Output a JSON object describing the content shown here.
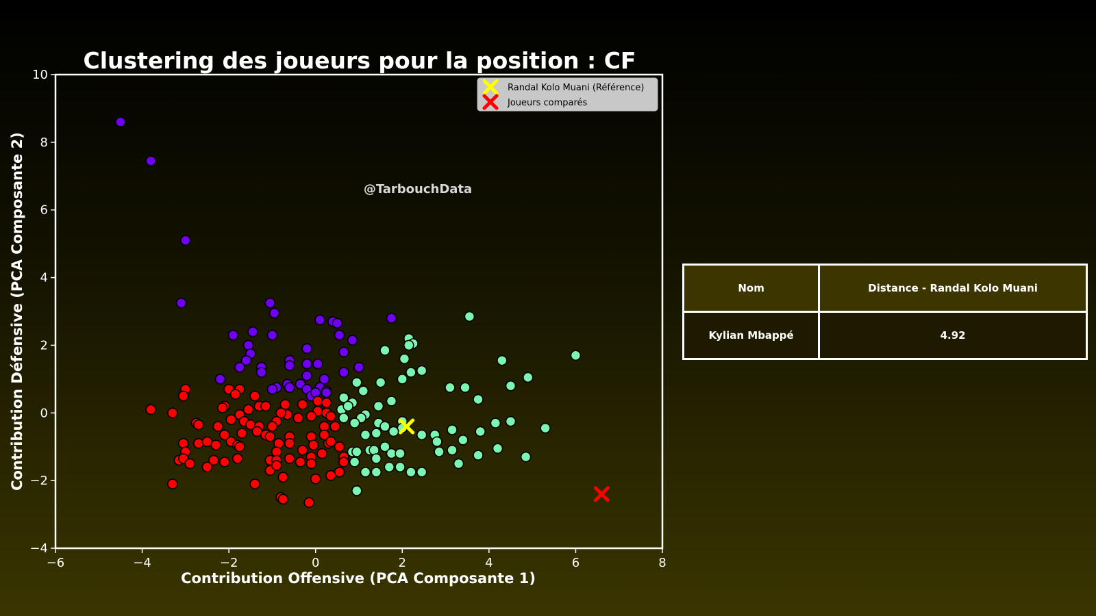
{
  "chart_data": {
    "type": "scatter",
    "title": "Clustering des joueurs pour la position : CF",
    "xlabel": "Contribution Offensive (PCA Composante 1)",
    "ylabel": "Contribution Défensive (PCA Composante 2)",
    "xlim": [
      -6,
      8
    ],
    "ylim": [
      -4,
      10
    ],
    "xticks": [
      "−6",
      "−4",
      "−2",
      "0",
      "2",
      "4",
      "6",
      "8"
    ],
    "yticks": [
      "−4",
      "−2",
      "0",
      "2",
      "4",
      "6",
      "8",
      "10"
    ],
    "watermark": "@TarbouchData",
    "legend_position": "top-right",
    "legend": [
      {
        "label": "Randal Kolo Muani (Référence)",
        "color": "#ffff00",
        "marker": "x"
      },
      {
        "label": "Joueurs comparés",
        "color": "#ff0000",
        "marker": "x"
      }
    ],
    "series": [
      {
        "color": "#7000f0",
        "points": [
          [
            -4.5,
            8.6
          ],
          [
            -3.8,
            7.45
          ],
          [
            -3.0,
            5.1
          ],
          [
            -3.1,
            3.25
          ],
          [
            -1.05,
            3.25
          ],
          [
            -0.95,
            2.95
          ],
          [
            -1.9,
            2.3
          ],
          [
            -1.45,
            2.4
          ],
          [
            -1.0,
            2.3
          ],
          [
            -1.55,
            2.0
          ],
          [
            -1.5,
            1.75
          ],
          [
            -1.6,
            1.55
          ],
          [
            -1.75,
            1.35
          ],
          [
            -1.25,
            1.35
          ],
          [
            -1.25,
            1.2
          ],
          [
            -2.2,
            1.0
          ],
          [
            -0.6,
            1.55
          ],
          [
            -0.6,
            1.4
          ],
          [
            -0.2,
            1.9
          ],
          [
            -0.2,
            1.45
          ],
          [
            0.05,
            1.45
          ],
          [
            -0.2,
            1.1
          ],
          [
            0.2,
            1.0
          ],
          [
            -0.35,
            0.85
          ],
          [
            -0.65,
            0.85
          ],
          [
            -0.6,
            0.75
          ],
          [
            -0.9,
            0.75
          ],
          [
            -1.0,
            0.7
          ],
          [
            -0.2,
            0.7
          ],
          [
            0.1,
            0.75
          ],
          [
            0.25,
            0.65
          ],
          [
            0.25,
            0.6
          ],
          [
            -0.1,
            0.5
          ],
          [
            0.1,
            2.75
          ],
          [
            0.4,
            2.7
          ],
          [
            0.5,
            2.65
          ],
          [
            0.55,
            2.3
          ],
          [
            0.85,
            2.15
          ],
          [
            0.65,
            1.8
          ],
          [
            1.0,
            1.35
          ],
          [
            0.65,
            1.2
          ],
          [
            1.75,
            2.8
          ],
          [
            0.0,
            0.6
          ],
          [
            -0.75,
            0.05
          ]
        ]
      },
      {
        "color": "#ff0000",
        "points": [
          [
            -3.8,
            0.1
          ],
          [
            -3.3,
            0.0
          ],
          [
            -3.0,
            0.7
          ],
          [
            -3.05,
            0.5
          ],
          [
            -2.0,
            0.7
          ],
          [
            -1.75,
            0.7
          ],
          [
            -1.85,
            0.55
          ],
          [
            -1.4,
            0.5
          ],
          [
            -2.1,
            0.2
          ],
          [
            -2.15,
            0.15
          ],
          [
            -1.55,
            0.1
          ],
          [
            -1.3,
            0.2
          ],
          [
            -1.15,
            0.2
          ],
          [
            -0.7,
            0.25
          ],
          [
            -0.3,
            0.25
          ],
          [
            0.05,
            0.35
          ],
          [
            0.25,
            0.3
          ],
          [
            0.05,
            0.05
          ],
          [
            0.25,
            0.0
          ],
          [
            0.35,
            -0.1
          ],
          [
            -0.65,
            -0.05
          ],
          [
            -0.8,
            0.0
          ],
          [
            -1.75,
            -0.05
          ],
          [
            -1.95,
            -0.2
          ],
          [
            -1.65,
            -0.25
          ],
          [
            -0.9,
            -0.25
          ],
          [
            -0.4,
            -0.15
          ],
          [
            -0.1,
            -0.1
          ],
          [
            0.2,
            -0.4
          ],
          [
            0.45,
            -0.4
          ],
          [
            -2.75,
            -0.3
          ],
          [
            -2.7,
            -0.35
          ],
          [
            -2.25,
            -0.4
          ],
          [
            -1.5,
            -0.35
          ],
          [
            -1.3,
            -0.4
          ],
          [
            -1.35,
            -0.55
          ],
          [
            -1.0,
            -0.4
          ],
          [
            -2.1,
            -0.65
          ],
          [
            -1.7,
            -0.6
          ],
          [
            -1.15,
            -0.65
          ],
          [
            -1.05,
            -0.7
          ],
          [
            -0.6,
            -0.7
          ],
          [
            -0.1,
            -0.7
          ],
          [
            0.2,
            -0.65
          ],
          [
            -3.05,
            -0.9
          ],
          [
            -2.7,
            -0.9
          ],
          [
            -2.5,
            -0.85
          ],
          [
            -2.3,
            -0.95
          ],
          [
            -1.95,
            -0.85
          ],
          [
            -1.8,
            -0.95
          ],
          [
            -1.75,
            -1.0
          ],
          [
            -0.85,
            -0.9
          ],
          [
            -0.6,
            -0.9
          ],
          [
            -0.05,
            -0.95
          ],
          [
            0.3,
            -0.9
          ],
          [
            0.35,
            -0.85
          ],
          [
            0.55,
            -1.0
          ],
          [
            -3.0,
            -1.15
          ],
          [
            -0.9,
            -1.15
          ],
          [
            -0.3,
            -1.1
          ],
          [
            -0.1,
            -1.3
          ],
          [
            0.15,
            -1.2
          ],
          [
            -3.15,
            -1.4
          ],
          [
            -3.05,
            -1.35
          ],
          [
            -2.9,
            -1.5
          ],
          [
            -2.35,
            -1.4
          ],
          [
            -2.1,
            -1.45
          ],
          [
            -1.8,
            -1.35
          ],
          [
            -1.05,
            -1.4
          ],
          [
            -0.9,
            -1.4
          ],
          [
            -0.6,
            -1.35
          ],
          [
            -0.35,
            -1.45
          ],
          [
            -0.1,
            -1.5
          ],
          [
            0.65,
            -1.3
          ],
          [
            0.65,
            -1.45
          ],
          [
            -2.5,
            -1.6
          ],
          [
            -1.05,
            -1.7
          ],
          [
            -0.9,
            -1.55
          ],
          [
            0.55,
            -1.75
          ],
          [
            -0.75,
            -1.9
          ],
          [
            0.35,
            -1.85
          ],
          [
            0.0,
            -1.95
          ],
          [
            -3.3,
            -2.1
          ],
          [
            -1.4,
            -2.1
          ],
          [
            -0.8,
            -2.5
          ],
          [
            -0.75,
            -2.55
          ],
          [
            -0.15,
            -2.65
          ]
        ]
      },
      {
        "color": "#7cf5b0",
        "points": [
          [
            2.15,
            2.2
          ],
          [
            2.25,
            2.05
          ],
          [
            2.15,
            2.0
          ],
          [
            1.6,
            1.85
          ],
          [
            2.05,
            1.6
          ],
          [
            3.55,
            2.85
          ],
          [
            2.45,
            1.25
          ],
          [
            2.2,
            1.2
          ],
          [
            2.0,
            1.0
          ],
          [
            1.5,
            0.9
          ],
          [
            0.95,
            0.9
          ],
          [
            1.1,
            0.65
          ],
          [
            3.1,
            0.75
          ],
          [
            3.45,
            0.75
          ],
          [
            4.5,
            0.8
          ],
          [
            4.9,
            1.05
          ],
          [
            4.3,
            1.55
          ],
          [
            6.0,
            1.7
          ],
          [
            3.75,
            0.4
          ],
          [
            0.65,
            0.45
          ],
          [
            0.85,
            0.3
          ],
          [
            1.75,
            0.35
          ],
          [
            1.45,
            0.2
          ],
          [
            0.6,
            0.1
          ],
          [
            0.75,
            0.2
          ],
          [
            1.15,
            -0.05
          ],
          [
            0.65,
            -0.15
          ],
          [
            1.05,
            -0.15
          ],
          [
            0.9,
            -0.3
          ],
          [
            1.45,
            -0.3
          ],
          [
            1.6,
            -0.4
          ],
          [
            2.0,
            -0.25
          ],
          [
            2.0,
            -0.45
          ],
          [
            1.8,
            -0.55
          ],
          [
            1.4,
            -0.6
          ],
          [
            1.15,
            -0.65
          ],
          [
            2.45,
            -0.65
          ],
          [
            2.75,
            -0.65
          ],
          [
            2.8,
            -0.85
          ],
          [
            3.15,
            -0.5
          ],
          [
            3.8,
            -0.55
          ],
          [
            4.15,
            -0.3
          ],
          [
            4.5,
            -0.25
          ],
          [
            5.3,
            -0.45
          ],
          [
            3.4,
            -0.8
          ],
          [
            1.6,
            -1.0
          ],
          [
            1.25,
            -1.1
          ],
          [
            0.85,
            -1.15
          ],
          [
            0.95,
            -1.15
          ],
          [
            1.35,
            -1.1
          ],
          [
            2.85,
            -1.15
          ],
          [
            3.15,
            -1.1
          ],
          [
            3.75,
            -1.25
          ],
          [
            4.2,
            -1.05
          ],
          [
            4.85,
            -1.3
          ],
          [
            1.75,
            -1.2
          ],
          [
            1.95,
            -1.2
          ],
          [
            1.4,
            -1.35
          ],
          [
            0.9,
            -1.45
          ],
          [
            3.3,
            -1.5
          ],
          [
            1.7,
            -1.6
          ],
          [
            1.95,
            -1.6
          ],
          [
            2.2,
            -1.75
          ],
          [
            2.45,
            -1.75
          ],
          [
            1.15,
            -1.75
          ],
          [
            1.4,
            -1.75
          ],
          [
            0.95,
            -2.3
          ]
        ]
      }
    ],
    "reference": {
      "x": 2.1,
      "y": -0.4,
      "color": "#ffff00"
    },
    "compared": [
      {
        "x": 6.6,
        "y": -2.4,
        "color": "#ff0000"
      }
    ]
  },
  "table": {
    "headers": [
      "Nom",
      "Distance - Randal Kolo Muani"
    ],
    "rows": [
      [
        "Kylian Mbappé",
        "4.92"
      ]
    ]
  }
}
